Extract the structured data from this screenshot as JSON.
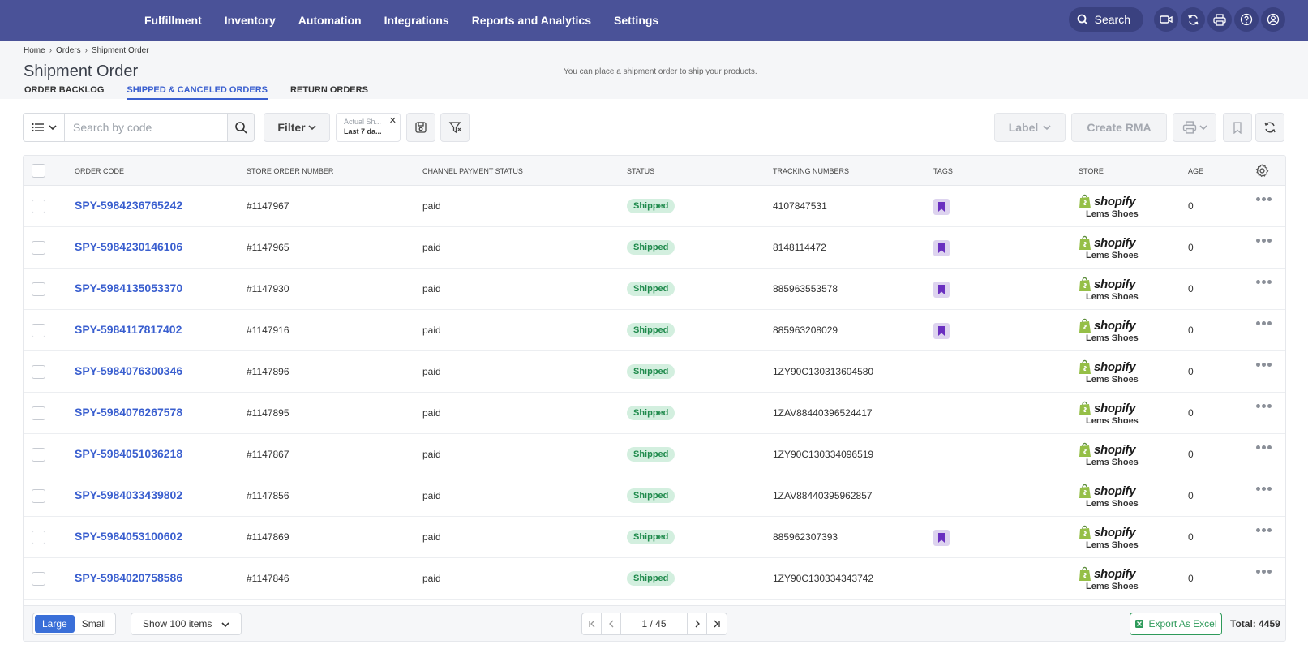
{
  "nav": {
    "items": [
      "Fulfillment",
      "Inventory",
      "Automation",
      "Integrations",
      "Reports and Analytics",
      "Settings"
    ],
    "search_label": "Search",
    "bg_color": "#4a5298"
  },
  "breadcrumb": [
    "Home",
    "Orders",
    "Shipment Order"
  ],
  "page": {
    "title": "Shipment Order",
    "subtitle": "You can place a shipment order to ship your products."
  },
  "tabs": [
    "ORDER BACKLOG",
    "SHIPPED & CANCELED ORDERS",
    "RETURN ORDERS"
  ],
  "toolbar": {
    "search_placeholder": "Search by code",
    "filter_label": "Filter",
    "chip_label": "Actual Sh...",
    "chip_value": "Last 7 da...",
    "label_button": "Label",
    "rma_button": "Create RMA"
  },
  "table": {
    "headers": [
      "ORDER CODE",
      "STORE ORDER NUMBER",
      "CHANNEL PAYMENT STATUS",
      "STATUS",
      "TRACKING NUMBERS",
      "TAGS",
      "STORE",
      "AGE"
    ],
    "rows": [
      {
        "code": "SPY-5984236765242",
        "store_order": "#1147967",
        "payment": "paid",
        "status": "Shipped",
        "tracking": "4107847531",
        "tag": true,
        "store_brand": "shopify",
        "store": "Lems Shoes",
        "age": "0"
      },
      {
        "code": "SPY-5984230146106",
        "store_order": "#1147965",
        "payment": "paid",
        "status": "Shipped",
        "tracking": "8148114472",
        "tag": true,
        "store_brand": "shopify",
        "store": "Lems Shoes",
        "age": "0"
      },
      {
        "code": "SPY-5984135053370",
        "store_order": "#1147930",
        "payment": "paid",
        "status": "Shipped",
        "tracking": "885963553578",
        "tag": true,
        "store_brand": "shopify",
        "store": "Lems Shoes",
        "age": "0"
      },
      {
        "code": "SPY-5984117817402",
        "store_order": "#1147916",
        "payment": "paid",
        "status": "Shipped",
        "tracking": "885963208029",
        "tag": true,
        "store_brand": "shopify",
        "store": "Lems Shoes",
        "age": "0"
      },
      {
        "code": "SPY-5984076300346",
        "store_order": "#1147896",
        "payment": "paid",
        "status": "Shipped",
        "tracking": "1ZY90C130313604580",
        "tag": false,
        "store_brand": "shopify",
        "store": "Lems Shoes",
        "age": "0"
      },
      {
        "code": "SPY-5984076267578",
        "store_order": "#1147895",
        "payment": "paid",
        "status": "Shipped",
        "tracking": "1ZAV88440396524417",
        "tag": false,
        "store_brand": "shopify",
        "store": "Lems Shoes",
        "age": "0"
      },
      {
        "code": "SPY-5984051036218",
        "store_order": "#1147867",
        "payment": "paid",
        "status": "Shipped",
        "tracking": "1ZY90C130334096519",
        "tag": false,
        "store_brand": "shopify",
        "store": "Lems Shoes",
        "age": "0"
      },
      {
        "code": "SPY-5984033439802",
        "store_order": "#1147856",
        "payment": "paid",
        "status": "Shipped",
        "tracking": "1ZAV88440395962857",
        "tag": false,
        "store_brand": "shopify",
        "store": "Lems Shoes",
        "age": "0"
      },
      {
        "code": "SPY-5984053100602",
        "store_order": "#1147869",
        "payment": "paid",
        "status": "Shipped",
        "tracking": "885962307393",
        "tag": true,
        "store_brand": "shopify",
        "store": "Lems Shoes",
        "age": "0"
      },
      {
        "code": "SPY-5984020758586",
        "store_order": "#1147846",
        "payment": "paid",
        "status": "Shipped",
        "tracking": "1ZY90C130334343742",
        "tag": false,
        "store_brand": "shopify",
        "store": "Lems Shoes",
        "age": "0"
      }
    ]
  },
  "footer": {
    "size_large": "Large",
    "size_small": "Small",
    "show_items": "Show 100 items",
    "page": "1 / 45",
    "export": "Export As Excel",
    "total": "Total: 4459"
  },
  "colors": {
    "accent": "#3a5fcf",
    "status_shipped_bg": "#d3efdf",
    "status_shipped_text": "#1f8a4c",
    "tag": "#6a2fc0",
    "export": "#2e9a5a"
  }
}
